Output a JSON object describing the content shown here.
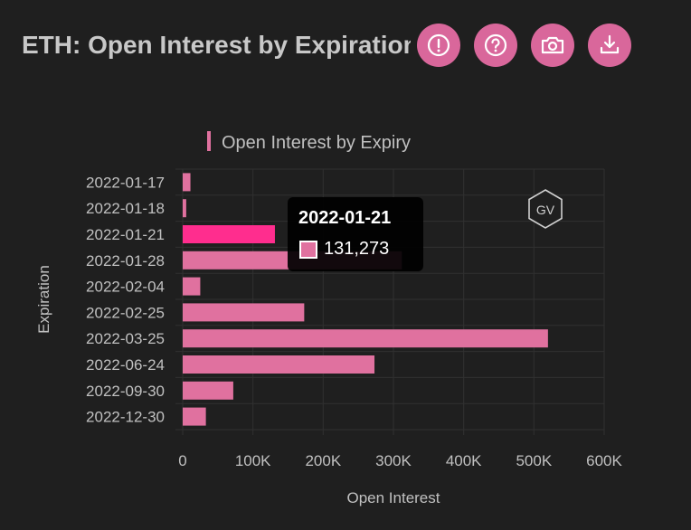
{
  "header": {
    "title": "ETH: Open Interest by Expiration",
    "buttons": [
      {
        "icon": "info-icon"
      },
      {
        "icon": "help-icon"
      },
      {
        "icon": "camera-icon"
      },
      {
        "icon": "download-icon"
      }
    ]
  },
  "watermark": "GV",
  "colors": {
    "bar": "#e0719f",
    "bar_active": "#ff2d8e",
    "accent": "#d9679b",
    "background": "#1f1f1f"
  },
  "tooltip": {
    "title": "2022-01-21",
    "value": "131,273"
  },
  "chart_data": {
    "type": "bar",
    "orientation": "horizontal",
    "series": [
      {
        "name": "Open Interest by Expiry",
        "values": [
          11000,
          5000,
          131273,
          312000,
          25000,
          173000,
          520000,
          273000,
          72000,
          33000
        ]
      }
    ],
    "categories": [
      "2022-01-17",
      "2022-01-18",
      "2022-01-21",
      "2022-01-28",
      "2022-02-04",
      "2022-02-25",
      "2022-03-25",
      "2022-06-24",
      "2022-09-30",
      "2022-12-30"
    ],
    "active_index": 2,
    "xlabel": "Open Interest",
    "ylabel": "Expiration",
    "xlim": [
      0,
      600000
    ],
    "xticks": [
      0,
      100000,
      200000,
      300000,
      400000,
      500000,
      600000
    ],
    "xtick_labels": [
      "0",
      "100K",
      "200K",
      "300K",
      "400K",
      "500K",
      "600K"
    ],
    "legend_position": "top",
    "grid": true
  }
}
